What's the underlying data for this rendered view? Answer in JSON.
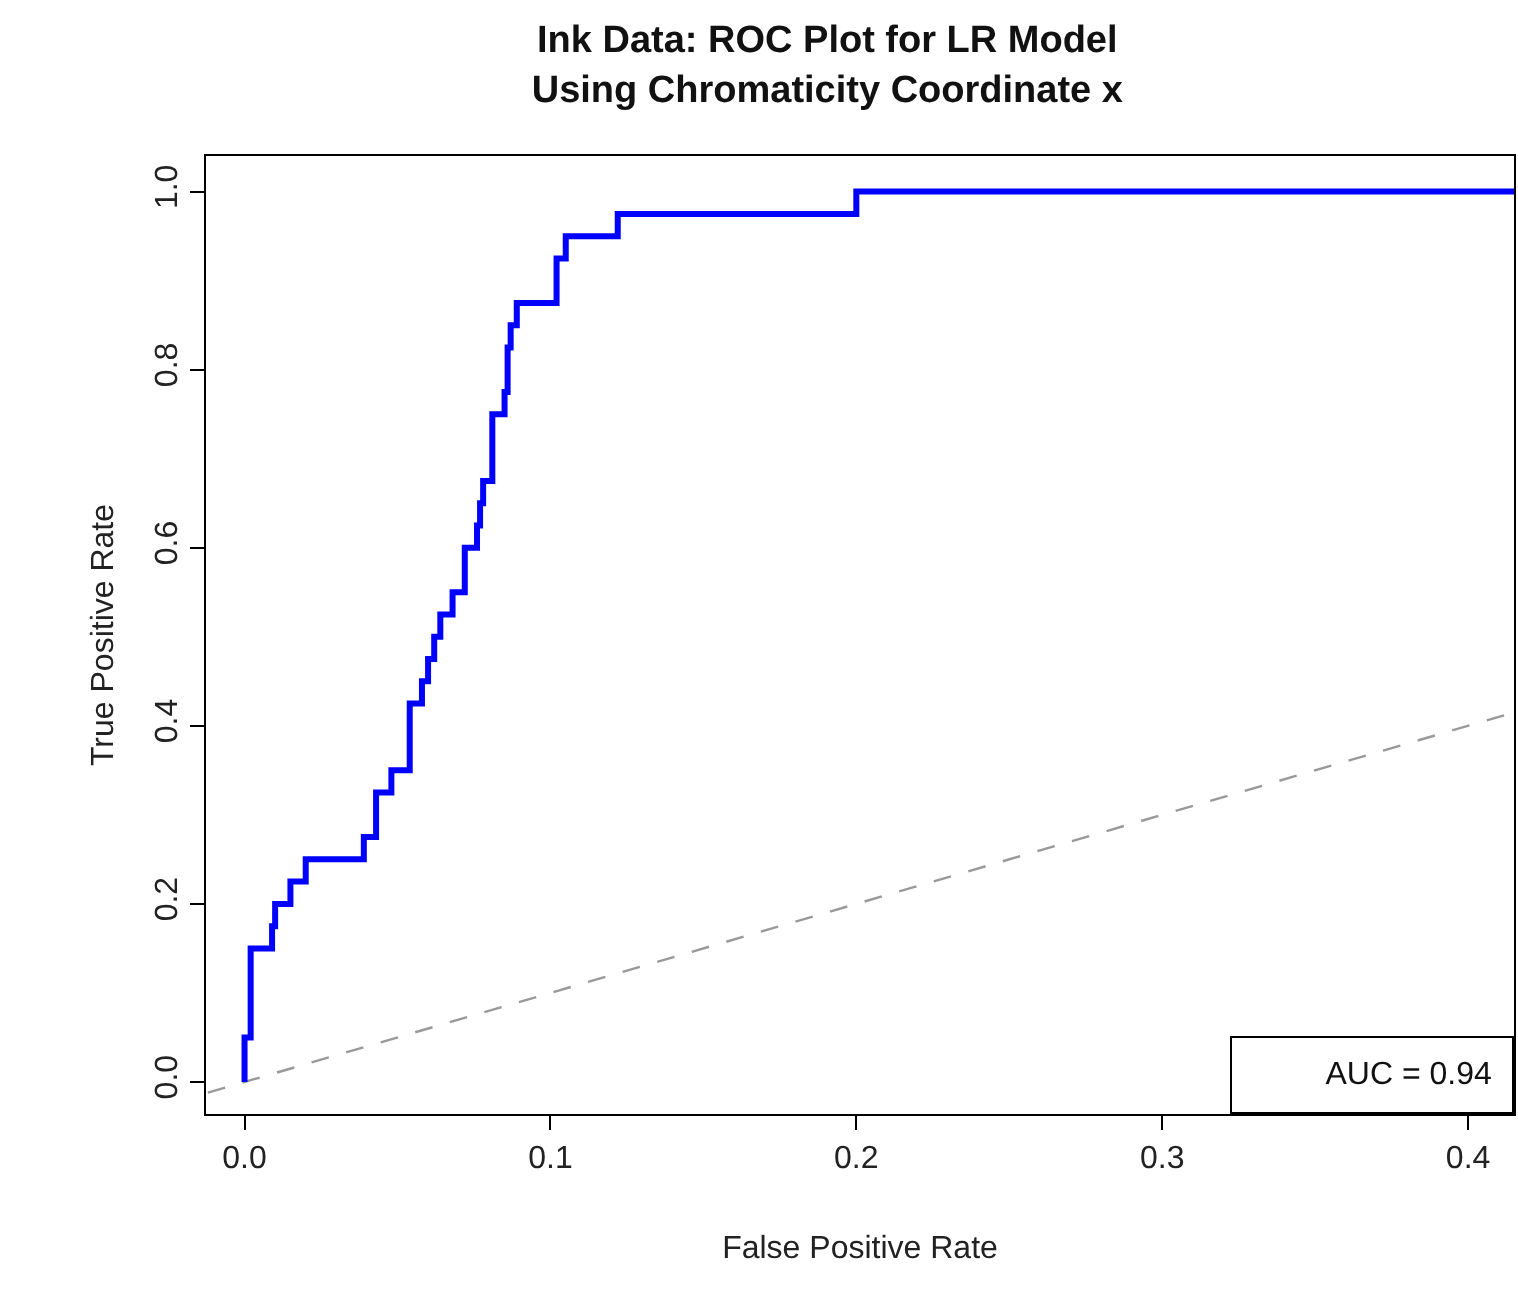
{
  "chart_data": {
    "type": "step",
    "title": "Ink Data: ROC Plot for LR Model\nUsing Chromaticity Coordinate x",
    "xlabel": "False Positive Rate",
    "ylabel": "True Positive Rate",
    "series": [
      {
        "color": "#0000ff",
        "line_style": "solid",
        "x": [
          0,
          0,
          0.002,
          0.009,
          0.01,
          0.015,
          0.02,
          0.039,
          0.043,
          0.048,
          0.054,
          0.054,
          0.058,
          0.06,
          0.062,
          0.064,
          0.068,
          0.072,
          0.076,
          0.077,
          0.078,
          0.081,
          0.085,
          0.086,
          0.087,
          0.089,
          0.102,
          0.105,
          0.122,
          0.2,
          0.415
        ],
        "values": [
          0,
          0.05,
          0.15,
          0.175,
          0.2,
          0.225,
          0.25,
          0.275,
          0.325,
          0.35,
          0.4,
          0.425,
          0.45,
          0.475,
          0.5,
          0.525,
          0.55,
          0.6,
          0.625,
          0.65,
          0.675,
          0.75,
          0.775,
          0.825,
          0.85,
          0.875,
          0.925,
          0.95,
          0.975,
          1.0,
          1.0
        ]
      },
      {
        "type": "line",
        "color": "#999999",
        "line_style": "dashed",
        "x": [
          -0.012,
          0.415
        ],
        "values": [
          -0.012,
          0.415
        ]
      }
    ],
    "annotations": [
      "AUC = 0.94"
    ],
    "xlim": [
      -0.0126,
      0.415
    ],
    "ylim": [
      -0.036,
      1.04
    ],
    "xticks": [
      {
        "value": 0,
        "label": "0.0"
      },
      0.1,
      0.2,
      0.3,
      0.4
    ],
    "yticks": [
      {
        "value": 0,
        "label": "0.0"
      },
      0.2,
      0.4,
      0.6,
      0.8,
      {
        "value": 1,
        "label": "1.0"
      }
    ],
    "grid": false,
    "marker": "none"
  }
}
